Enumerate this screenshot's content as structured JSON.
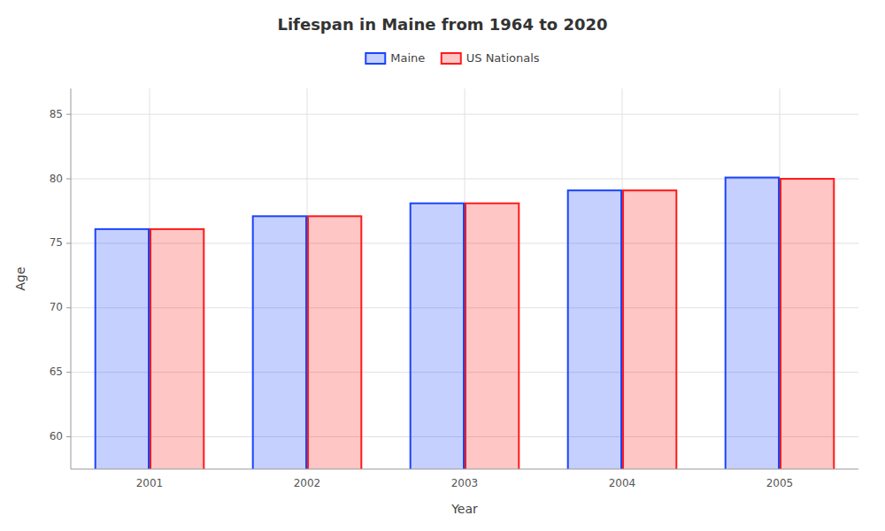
{
  "chart_data": {
    "type": "bar",
    "title": "Lifespan in Maine from 1964 to 2020",
    "x_label": "Year",
    "y_label": "Age",
    "categories": [
      "2001",
      "2002",
      "2003",
      "2004",
      "2005"
    ],
    "series": [
      {
        "name": "Maine",
        "color": "#1a44ff",
        "values": [
          76.1,
          77.1,
          78.1,
          79.1,
          80.1
        ]
      },
      {
        "name": "US Nationals",
        "color": "#ff1a1a",
        "values": [
          76.1,
          77.1,
          78.1,
          79.1,
          80.0
        ]
      }
    ],
    "ylim": [
      57.5,
      87
    ],
    "yticks": [
      60,
      65,
      70,
      75,
      80,
      85
    ],
    "grid": true,
    "legend": "top"
  }
}
